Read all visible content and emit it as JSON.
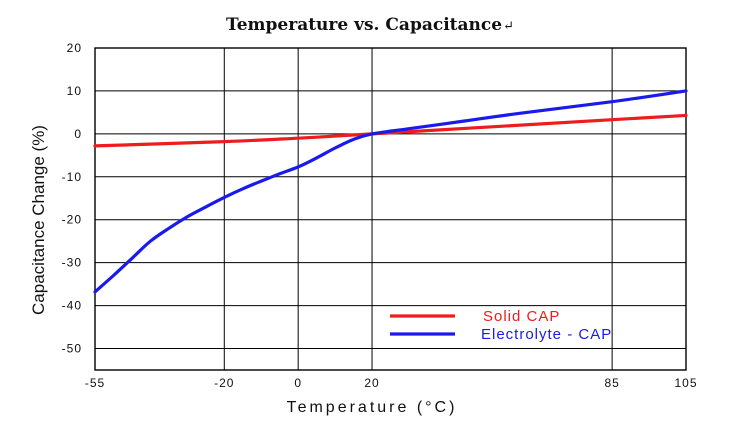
{
  "chart_data": {
    "type": "line",
    "title": "Temperature vs. Capacitance",
    "title_mark": "↵",
    "xlabel": "Temperature (°C)",
    "ylabel": "Capacitance Change (%)",
    "x_ticks": [
      -55,
      -20,
      0,
      20,
      85,
      105
    ],
    "x_tick_labels": [
      "-55",
      "-20",
      "0",
      "20",
      "85",
      "105"
    ],
    "y_ticks": [
      20,
      10,
      0,
      -10,
      -20,
      -30,
      -40,
      -50
    ],
    "y_tick_labels": [
      "20",
      "10",
      "0",
      "-10",
      "-20",
      "-30",
      "-40",
      "-50"
    ],
    "xlim": [
      -55,
      105
    ],
    "ylim": [
      -55,
      20
    ],
    "grid": true,
    "legend_position": "bottom-right",
    "series": [
      {
        "name": "Solid CAP",
        "color": "#ee1c1c",
        "x": [
          -55,
          -20,
          0,
          20,
          85,
          105
        ],
        "values": [
          -2.8,
          -1.8,
          -1.0,
          0.0,
          3.3,
          4.3
        ]
      },
      {
        "name": "Electrolyte - CAP",
        "color": "#1a1aee",
        "x": [
          -55,
          -50,
          -45,
          -40,
          -35,
          -30,
          -25,
          -20,
          -15,
          -10,
          -5,
          0,
          5,
          10,
          15,
          20,
          30,
          45,
          60,
          85,
          105
        ],
        "values": [
          -36.8,
          -33.0,
          -29.0,
          -25.0,
          -22.0,
          -19.3,
          -17.0,
          -14.8,
          -12.8,
          -11.0,
          -9.3,
          -7.7,
          -5.6,
          -3.3,
          -1.3,
          0.0,
          1.2,
          3.0,
          4.8,
          7.5,
          10.0
        ]
      }
    ]
  }
}
